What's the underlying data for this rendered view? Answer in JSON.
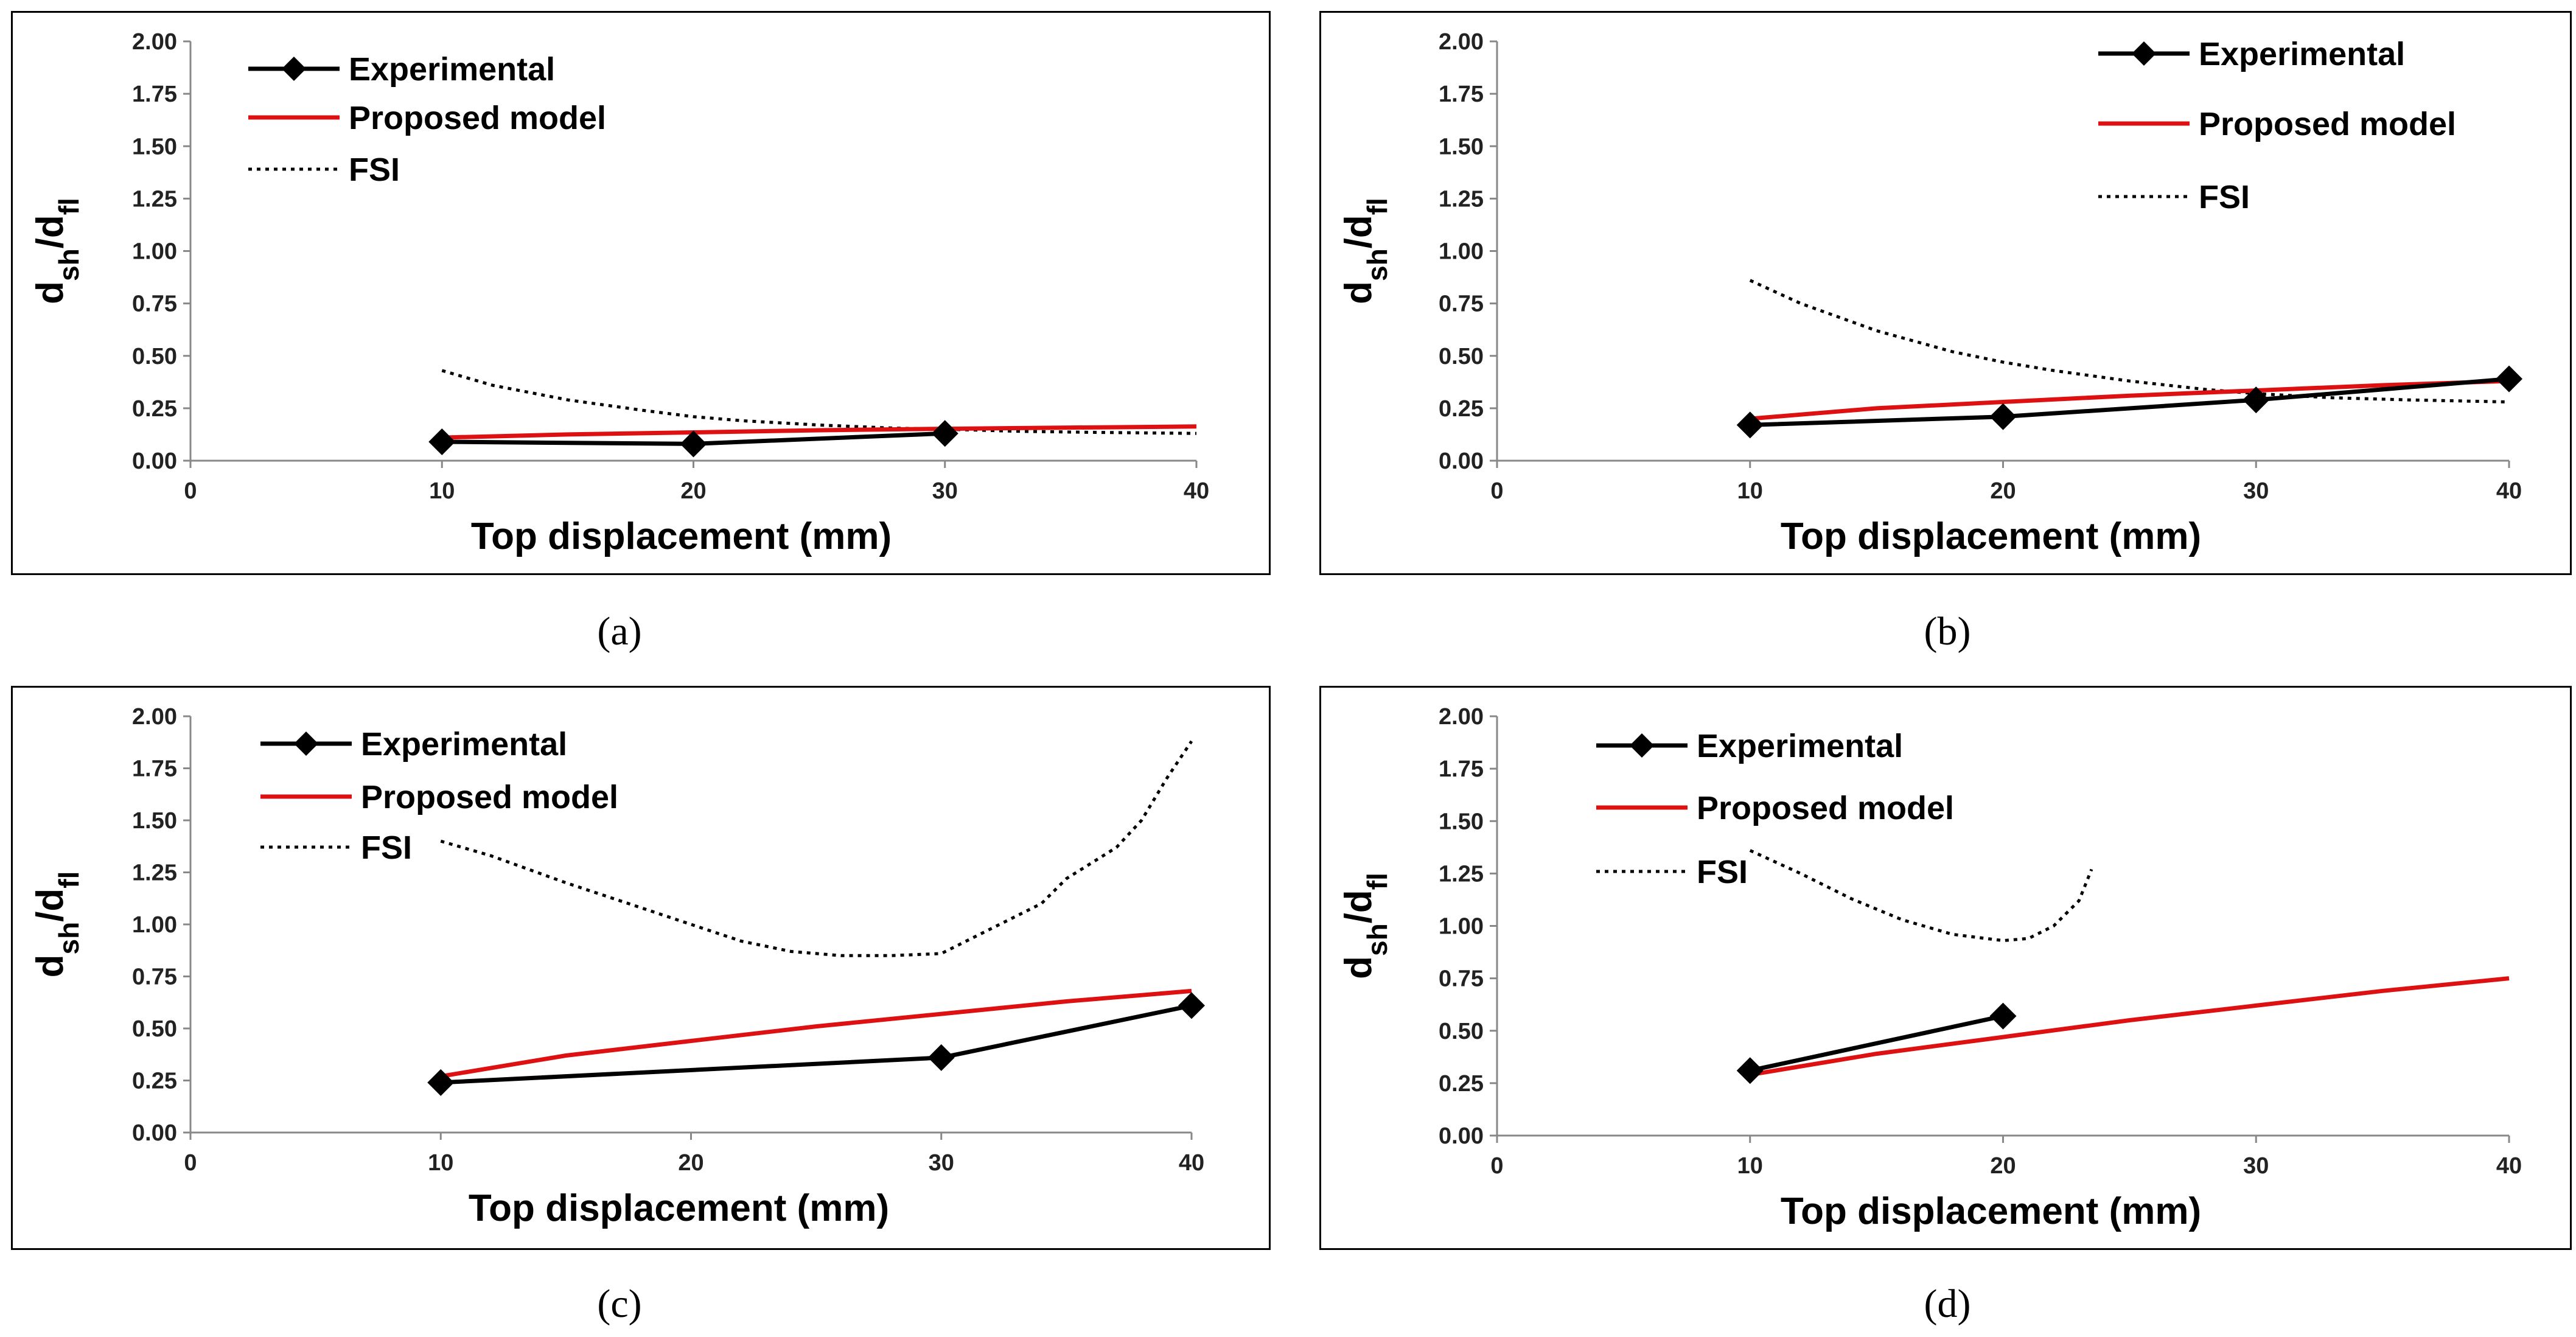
{
  "chart_data": [
    {
      "type": "line",
      "panel": "(a)",
      "xlabel": "Top displacement (mm)",
      "ylabel": "dsh/dfl",
      "ylabel_main": "d",
      "ylabel_sub1": "sh",
      "ylabel_sub2": "fl",
      "xlim": [
        0,
        40
      ],
      "ylim": [
        0,
        2
      ],
      "xticks": [
        "0",
        "10",
        "20",
        "30",
        "40"
      ],
      "yticks": [
        "0.00",
        "0.25",
        "0.50",
        "0.75",
        "1.00",
        "1.25",
        "1.50",
        "1.75",
        "2.00"
      ],
      "series": [
        {
          "name": "Experimental",
          "color": "#000000",
          "style": "solid-marker",
          "x": [
            10,
            20,
            30
          ],
          "y": [
            0.09,
            0.08,
            0.13
          ]
        },
        {
          "name": "Proposed model",
          "color": "#dd1111",
          "style": "solid",
          "x": [
            10,
            15,
            20,
            25,
            30,
            35,
            40
          ],
          "y": [
            0.11,
            0.125,
            0.135,
            0.145,
            0.152,
            0.158,
            0.163
          ]
        },
        {
          "name": "FSI",
          "color": "#000000",
          "style": "dotted",
          "x": [
            10,
            12,
            15,
            18,
            20,
            22,
            25,
            28,
            30,
            33,
            36,
            40
          ],
          "y": [
            0.43,
            0.36,
            0.29,
            0.24,
            0.21,
            0.19,
            0.17,
            0.155,
            0.15,
            0.14,
            0.135,
            0.13
          ]
        }
      ]
    },
    {
      "type": "line",
      "panel": "(b)",
      "xlabel": "Top displacement (mm)",
      "ylabel": "dsh/dfl",
      "ylabel_main": "d",
      "ylabel_sub1": "sh",
      "ylabel_sub2": "fl",
      "xlim": [
        0,
        40
      ],
      "ylim": [
        0,
        2
      ],
      "xticks": [
        "0",
        "10",
        "20",
        "30",
        "40"
      ],
      "yticks": [
        "0.00",
        "0.25",
        "0.50",
        "0.75",
        "1.00",
        "1.25",
        "1.50",
        "1.75",
        "2.00"
      ],
      "series": [
        {
          "name": "Experimental",
          "color": "#000000",
          "style": "solid-marker",
          "x": [
            10,
            20,
            30,
            40
          ],
          "y": [
            0.17,
            0.21,
            0.29,
            0.39
          ]
        },
        {
          "name": "Proposed model",
          "color": "#dd1111",
          "style": "solid",
          "x": [
            10,
            15,
            20,
            25,
            30,
            35,
            40
          ],
          "y": [
            0.2,
            0.25,
            0.28,
            0.31,
            0.335,
            0.36,
            0.38
          ]
        },
        {
          "name": "FSI",
          "color": "#000000",
          "style": "dotted",
          "x": [
            10,
            12,
            15,
            18,
            20,
            22,
            25,
            28,
            30,
            33,
            36,
            40
          ],
          "y": [
            0.86,
            0.75,
            0.62,
            0.52,
            0.47,
            0.43,
            0.38,
            0.34,
            0.32,
            0.3,
            0.29,
            0.28
          ]
        }
      ]
    },
    {
      "type": "line",
      "panel": "(c)",
      "xlabel": "Top displacement (mm)",
      "ylabel": "dsh/dfl",
      "ylabel_main": "d",
      "ylabel_sub1": "sh",
      "ylabel_sub2": "fl",
      "xlim": [
        0,
        40
      ],
      "ylim": [
        0,
        2
      ],
      "xticks": [
        "0",
        "10",
        "20",
        "30",
        "40"
      ],
      "yticks": [
        "0.00",
        "0.25",
        "0.50",
        "0.75",
        "1.00",
        "1.25",
        "1.50",
        "1.75",
        "2.00"
      ],
      "series": [
        {
          "name": "Experimental",
          "color": "#000000",
          "style": "solid-marker",
          "x": [
            10,
            30,
            40
          ],
          "y": [
            0.24,
            0.36,
            0.61
          ]
        },
        {
          "name": "Proposed model",
          "color": "#dd1111",
          "style": "solid",
          "x": [
            10,
            15,
            20,
            25,
            30,
            35,
            40
          ],
          "y": [
            0.27,
            0.37,
            0.44,
            0.51,
            0.57,
            0.63,
            0.68
          ]
        },
        {
          "name": "FSI",
          "color": "#000000",
          "style": "dotted",
          "x": [
            10,
            12,
            15,
            18,
            20,
            22,
            24,
            26,
            28,
            30,
            32,
            34,
            35,
            37,
            38,
            39,
            40
          ],
          "y": [
            1.4,
            1.33,
            1.2,
            1.08,
            1.0,
            0.92,
            0.87,
            0.85,
            0.85,
            0.86,
            0.98,
            1.1,
            1.22,
            1.37,
            1.5,
            1.7,
            1.88
          ]
        }
      ]
    },
    {
      "type": "line",
      "panel": "(d)",
      "xlabel": "Top displacement (mm)",
      "ylabel": "dsh/dfl",
      "ylabel_main": "d",
      "ylabel_sub1": "sh",
      "ylabel_sub2": "fl",
      "xlim": [
        0,
        40
      ],
      "ylim": [
        0,
        2
      ],
      "xticks": [
        "0",
        "10",
        "20",
        "30",
        "40"
      ],
      "yticks": [
        "0.00",
        "0.25",
        "0.50",
        "0.75",
        "1.00",
        "1.25",
        "1.50",
        "1.75",
        "2.00"
      ],
      "series": [
        {
          "name": "Experimental",
          "color": "#000000",
          "style": "solid-marker",
          "x": [
            10,
            20
          ],
          "y": [
            0.31,
            0.57
          ]
        },
        {
          "name": "Proposed model",
          "color": "#dd1111",
          "style": "solid",
          "x": [
            10,
            15,
            20,
            25,
            30,
            35,
            40
          ],
          "y": [
            0.29,
            0.39,
            0.47,
            0.55,
            0.62,
            0.69,
            0.75
          ]
        },
        {
          "name": "FSI",
          "color": "#000000",
          "style": "dotted",
          "x": [
            10,
            12,
            14,
            16,
            18,
            20,
            21,
            22,
            23,
            23.5
          ],
          "y": [
            1.36,
            1.25,
            1.13,
            1.03,
            0.96,
            0.93,
            0.94,
            1.0,
            1.12,
            1.27
          ]
        }
      ]
    }
  ]
}
